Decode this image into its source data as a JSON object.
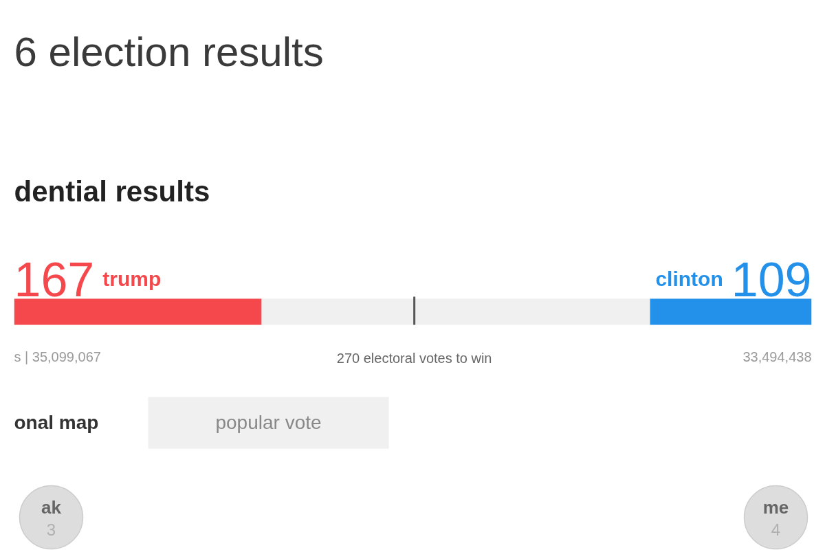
{
  "chart_data": {
    "type": "bar",
    "orientation": "horizontal",
    "stacked": true,
    "title": "6 election results",
    "subtitle": "dential results",
    "categories": [
      null
    ],
    "series": [
      {
        "name": "trump",
        "color": "#f5484c",
        "values": [
          167
        ],
        "value_labels": [
          "167"
        ]
      },
      {
        "color": "#f0f0f0",
        "values": [
          262
        ]
      },
      {
        "name": "clinton",
        "color": "#2390ea",
        "values": [
          109
        ],
        "value_labels": [
          "109"
        ]
      }
    ],
    "xlim": [
      0,
      538
    ],
    "tick_labels": false,
    "ref_lines": [
      {
        "axis": "x",
        "value": 270,
        "label": "270 electoral votes to win",
        "color": "#555555"
      }
    ],
    "annotations": [
      "s | 35,099,067",
      "33,494,438",
      "onal map",
      "popular vote",
      "ak",
      "3",
      "me",
      "4"
    ]
  }
}
